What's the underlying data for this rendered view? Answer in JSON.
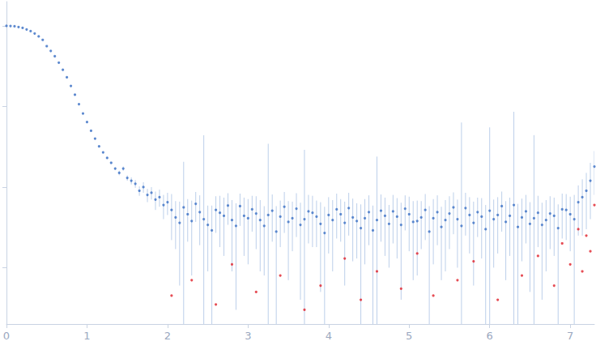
{
  "chart_data": {
    "type": "scatter",
    "log": "y",
    "grid": false,
    "tick_labels": "x",
    "xlim": [
      0,
      7.3
    ],
    "xticks": [
      0,
      1,
      2,
      3,
      4,
      5,
      6,
      7
    ],
    "ylim": [
      0.2,
      2000
    ],
    "yticks": [
      1,
      10,
      100,
      1000
    ],
    "series": [
      {
        "color": "#3a6fc4",
        "marker": "circle",
        "x": [
          0,
          0.05,
          0.1,
          0.15,
          0.2,
          0.25,
          0.3,
          0.35,
          0.4,
          0.45,
          0.5,
          0.55,
          0.6,
          0.65,
          0.7,
          0.75,
          0.8,
          0.85,
          0.9,
          0.95,
          1.0,
          1.05,
          1.1,
          1.15,
          1.2,
          1.25,
          1.3,
          1.35,
          1.4,
          1.45,
          1.5,
          1.55,
          1.6,
          1.65,
          1.7,
          1.75,
          1.8,
          1.85,
          1.9,
          1.95,
          2.0,
          2.05,
          2.1,
          2.15,
          2.2,
          2.25,
          2.3,
          2.35,
          2.4,
          2.45,
          2.5,
          2.55,
          2.6,
          2.65,
          2.7,
          2.75,
          2.8,
          2.85,
          2.9,
          2.95,
          3.0,
          3.05,
          3.1,
          3.15,
          3.2,
          3.25,
          3.3,
          3.35,
          3.4,
          3.45,
          3.5,
          3.55,
          3.6,
          3.65,
          3.7,
          3.75,
          3.8,
          3.85,
          3.9,
          3.95,
          4.0,
          4.05,
          4.1,
          4.15,
          4.2,
          4.25,
          4.3,
          4.35,
          4.4,
          4.45,
          4.5,
          4.55,
          4.6,
          4.65,
          4.7,
          4.75,
          4.8,
          4.85,
          4.9,
          4.95,
          5.0,
          5.05,
          5.1,
          5.15,
          5.2,
          5.25,
          5.3,
          5.35,
          5.4,
          5.45,
          5.5,
          5.55,
          5.6,
          5.65,
          5.7,
          5.75,
          5.8,
          5.85,
          5.9,
          5.95,
          6.0,
          6.05,
          6.1,
          6.15,
          6.2,
          6.25,
          6.3,
          6.35,
          6.4,
          6.45,
          6.5,
          6.55,
          6.6,
          6.65,
          6.7,
          6.75,
          6.8,
          6.85,
          6.9,
          6.95,
          7.0,
          7.05,
          7.1,
          7.15,
          7.2,
          7.25,
          7.3
        ],
        "values": [
          1000,
          997,
          988,
          970,
          945,
          905,
          860,
          805,
          740,
          670,
          560,
          490,
          420,
          350,
          285,
          230,
          180,
          140,
          107,
          82,
          64,
          50,
          40,
          32,
          27,
          23,
          20,
          17,
          15,
          17,
          13,
          12,
          11,
          9,
          10,
          8,
          8.5,
          7,
          7.5,
          6,
          6.5,
          5.2,
          4.2,
          3.6,
          5.6,
          4.6,
          3.8,
          6.2,
          4.9,
          4.0,
          3.4,
          2.9,
          5.2,
          4.8,
          4.4,
          5.9,
          3.9,
          3.3,
          5.8,
          4.4,
          4.1,
          5.3,
          4.7,
          3.9,
          3.3,
          4.5,
          5.1,
          2.8,
          4.3,
          5.7,
          3.7,
          4.1,
          5.4,
          3.4,
          4.0,
          5.0,
          4.8,
          4.3,
          3.5,
          2.7,
          4.5,
          3.9,
          5.3,
          4.6,
          3.6,
          5.5,
          4.2,
          3.8,
          3.1,
          4.1,
          4.9,
          2.9,
          3.9,
          5.1,
          4.4,
          3.5,
          5.0,
          4.3,
          3.4,
          5.4,
          4.6,
          3.7,
          3.8,
          4.2,
          5.2,
          2.8,
          4.1,
          4.9,
          3.2,
          3.9,
          4.7,
          5.6,
          4.0,
          3.3,
          5.5,
          4.5,
          3.6,
          4.9,
          4.3,
          3.0,
          5.1,
          4.0,
          4.5,
          5.8,
          3.7,
          4.4,
          6.0,
          3.2,
          4.2,
          5.0,
          3.5,
          4.1,
          4.8,
          3.4,
          3.9,
          4.7,
          4.4,
          3.1,
          5.3,
          5.2,
          4.6,
          4.0,
          6.5,
          7.5,
          9.0,
          12,
          18
        ],
        "errors": [
          5,
          5,
          5,
          5,
          5,
          5,
          5,
          5,
          5,
          5,
          5,
          4,
          4,
          4,
          3,
          3,
          2.5,
          2,
          1.5,
          1.2,
          1,
          0.9,
          0.8,
          0.7,
          0.6,
          0.6,
          0.6,
          0.6,
          1,
          1,
          1,
          1.2,
          1.2,
          1.2,
          1.5,
          1.5,
          1.5,
          1.8,
          1.8,
          2,
          2,
          3,
          2.5,
          3,
          15,
          2.5,
          3,
          2.5,
          3,
          40,
          2.5,
          3,
          2.5,
          3,
          3,
          2.5,
          3,
          3,
          2.5,
          3,
          3,
          2.5,
          3,
          3,
          2.5,
          30,
          3,
          3,
          2.5,
          3,
          3,
          2.5,
          3,
          3,
          25,
          3,
          3,
          2.5,
          3,
          3,
          3,
          3,
          3,
          2.5,
          3,
          3,
          3,
          2.5,
          3,
          3,
          3,
          3,
          20,
          3,
          3,
          2.5,
          3,
          3,
          3,
          2.5,
          3,
          3,
          3,
          2.5,
          3,
          3,
          3,
          3,
          2.5,
          3,
          3,
          3,
          3,
          60,
          3,
          3,
          3,
          2.5,
          3,
          3,
          50,
          3,
          3,
          3,
          3,
          3,
          80,
          3,
          3,
          3,
          3,
          40,
          3,
          3,
          3,
          3,
          3,
          3,
          3,
          3,
          3,
          4,
          4,
          5,
          6,
          8,
          10
        ]
      },
      {
        "color": "#e0202a",
        "marker": "circle",
        "x": [
          2.05,
          2.3,
          2.6,
          2.8,
          3.1,
          3.4,
          3.7,
          3.9,
          4.2,
          4.4,
          4.6,
          4.9,
          5.1,
          5.3,
          5.6,
          5.8,
          6.1,
          6.4,
          6.6,
          6.8,
          6.9,
          7.0,
          7.1,
          7.15,
          7.2,
          7.25,
          7.3
        ],
        "values": [
          0.45,
          0.7,
          0.35,
          1.1,
          0.5,
          0.8,
          0.3,
          0.6,
          1.3,
          0.4,
          0.9,
          0.55,
          1.5,
          0.45,
          0.7,
          1.2,
          0.4,
          0.8,
          1.4,
          0.6,
          2.0,
          1.1,
          3.0,
          0.9,
          2.5,
          1.6,
          6
        ]
      }
    ]
  }
}
